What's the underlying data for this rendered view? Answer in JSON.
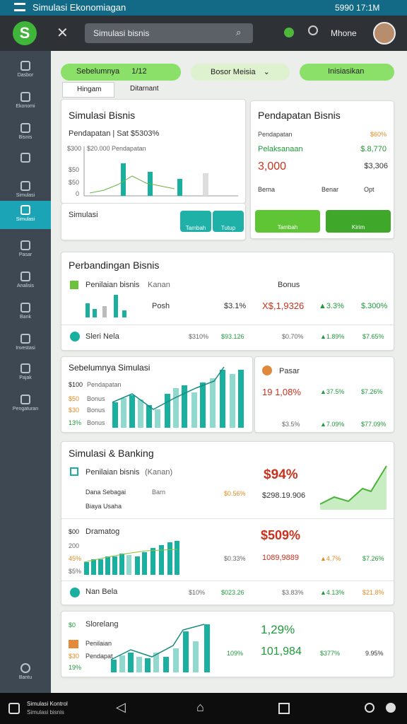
{
  "status_bar": {
    "title": "Simulasi Ekonomiagan",
    "time": "5990 17:1M"
  },
  "header": {
    "search": "Simulasi bisnis",
    "user": "Mhone"
  },
  "sidebar": {
    "items": [
      "Dasbor",
      "Ekonomi",
      "Bisnis",
      "Simulasi",
      "Simulasi",
      "Pasar",
      "Analisis",
      "Bank",
      "Investasi",
      "Pajak",
      "Pengaturan"
    ],
    "help": "Bantu"
  },
  "tabs": {
    "previous": "Sebelumnya",
    "page": "1/12",
    "dropdown": "Bosor Meisia",
    "action": "Inisiasikan"
  },
  "subtabs": [
    "Hingam",
    "Ditarnant"
  ],
  "card_simulation": {
    "title": "Simulasi Bisnis",
    "subtitle": "Pendapatan | Sat $5303%",
    "axis_note": "$20.000 Pendapatan",
    "axis_labels": [
      "$300",
      "$50",
      "$50",
      "0"
    ],
    "footer": "Simulasi",
    "buttons": [
      "Tambah",
      "Tutup"
    ]
  },
  "card_income": {
    "title": "Pendapatan Bisnis",
    "rows": [
      [
        "Pendapatan",
        "$60%"
      ],
      [
        "Pelaksanaan",
        "$.8,770"
      ],
      [
        "3,000",
        "$3,306"
      ]
    ],
    "footer": [
      "Berna",
      "Benar",
      "Opt"
    ],
    "buttons": [
      "Tambah",
      "Kirim"
    ]
  },
  "card_compare": {
    "title": "Perbandingan Bisnis",
    "filter": "Penilaian bisnis",
    "filter_note": "Kanan",
    "side_title": "Bonus",
    "rows": [
      {
        "label": "Posh",
        "cells": [
          "$3.1%",
          "X$,1,9326",
          "▲3.3%",
          "$.300%"
        ]
      },
      {
        "label": "Sleri Nela",
        "cells": [
          "$310%",
          "$93.126",
          "$0.70%",
          "▲1.89%",
          "$7.65%"
        ]
      }
    ]
  },
  "card_trend": {
    "title": "Sebelumnya Simulasi",
    "legend": [
      [
        "$100",
        "Pendapatan"
      ],
      [
        "$50",
        "Bonus"
      ],
      [
        "$30",
        "Bonus"
      ],
      [
        "13%",
        "Bonus"
      ]
    ],
    "side_title": "Pasar",
    "rows": [
      [
        "19 1,08%",
        "▲37.5%",
        "$7.26%"
      ],
      [
        "$3.5%",
        "▲7.09%",
        "$77.09%"
      ]
    ]
  },
  "card_banking": {
    "title": "Simulasi & Banking",
    "filter": "Penilaian bisnis",
    "filter_note": "(Kanan)",
    "items": [
      "Dana Sebagai",
      "Biaya Usaha"
    ],
    "item_note": "Barn",
    "value_small": "$0.56%",
    "value_big": "$94%",
    "value_total": "$298.19.906",
    "section_title": "Dramatog",
    "section_axis": [
      "$00",
      "200",
      "45%",
      "$5%"
    ],
    "section_cells": [
      "$0.33%",
      "$509%",
      "1089,9889",
      "▲4.7%",
      "$7.26%"
    ],
    "row": {
      "label": "Nan Bela",
      "cells": [
        "$10%",
        "$023.26",
        "$3.83%",
        "▲4.13%",
        "$21.8%"
      ]
    }
  },
  "card_extra": {
    "title": "Slorelang",
    "axis": [
      "$0",
      "$30",
      "19%"
    ],
    "items": [
      "Penilaian",
      "Pendapat"
    ],
    "cells": [
      "109%",
      "1,29%",
      "101,984",
      "$377%",
      "9.95%"
    ]
  },
  "bottom_nav": {
    "title": "Simulasi Kontrol",
    "subtitle": "Simulasi bisnis"
  }
}
